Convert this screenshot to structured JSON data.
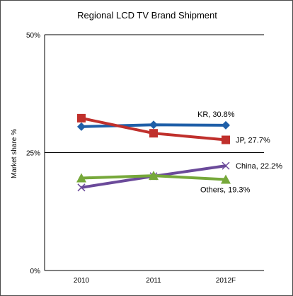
{
  "chart_data": {
    "type": "line",
    "title": "Regional LCD TV Brand Shipment",
    "ylabel": "Market share %",
    "xlabel": "",
    "categories": [
      "2010",
      "2011",
      "2012F"
    ],
    "ylim": [
      0,
      50
    ],
    "yticks": [
      {
        "value": 0,
        "label": "0%"
      },
      {
        "value": 25,
        "label": "25%"
      },
      {
        "value": 50,
        "label": "50%"
      }
    ],
    "grid": "horizontal",
    "series": [
      {
        "name": "KR",
        "values": [
          30.5,
          30.9,
          30.8
        ],
        "color": "#1f5fa8",
        "marker": "diamond",
        "end_label": "KR, 30.8%"
      },
      {
        "name": "JP",
        "values": [
          32.3,
          29.1,
          27.7
        ],
        "color": "#c0302c",
        "marker": "square",
        "end_label": "JP, 27.7%"
      },
      {
        "name": "China",
        "values": [
          17.6,
          20.0,
          22.2
        ],
        "color": "#6b4a9a",
        "marker": "x",
        "end_label": "China, 22.2%"
      },
      {
        "name": "Others",
        "values": [
          19.6,
          20.1,
          19.3
        ],
        "color": "#76a83a",
        "marker": "triangle",
        "end_label": "Others, 19.3%"
      }
    ]
  }
}
